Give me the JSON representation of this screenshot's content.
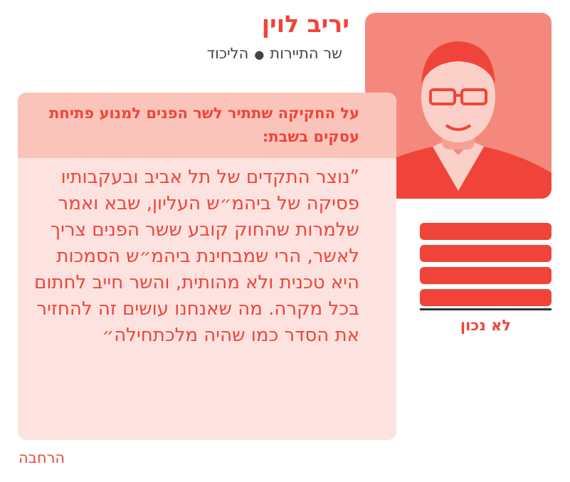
{
  "person": {
    "name": "יריב לוין",
    "role": "שר התיירות",
    "separator": "●",
    "party": "הליכוד",
    "photo_icon": "portrait-photo"
  },
  "quote_card": {
    "topic": "על החקיקה שתתיר לשר הפנים למנוע פתיחת עסקים בשבת:",
    "quote": "”נוצר התקדים של תל אביב ובעקבותיו פסיקה של ביהמ״ש העליון, שבא ואמר שלמרות שהחוק קובע ששר הפנים צריך לאשר, הרי שמבחינת ביהמ״ש הסמכות היא טכנית ולא מהותית, והשר חייב לחתום בכל מקרה. מה שאנחנו עושים זה להחזיר את הסדר כמו שהיה מלכתחילה״"
  },
  "rating": {
    "filled_bars": 4,
    "total_bars": 4,
    "verdict": "לא נכון"
  },
  "expand_link": "הרחבה",
  "colors": {
    "accent": "#f0443a",
    "header_bg": "#fbc4bb",
    "body_bg": "#fde3df",
    "photo_tint": "#f4887c",
    "subtitle": "#444444"
  }
}
